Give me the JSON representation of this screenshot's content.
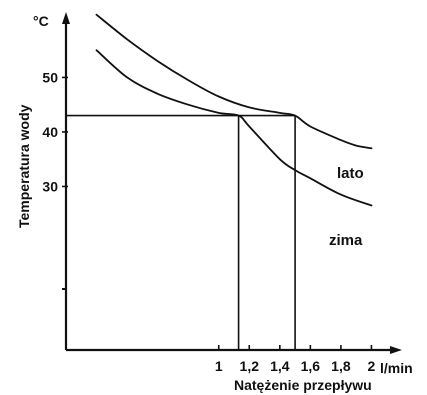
{
  "chart_data": {
    "type": "line",
    "title": "",
    "xlabel": "Natężenie przepływu",
    "ylabel": "Temperatura wody",
    "x_unit": "l/min",
    "y_unit": "°C",
    "xlim": [
      0.0,
      2.2
    ],
    "ylim": [
      0,
      62
    ],
    "x_ticks": [
      1,
      1.2,
      1.4,
      1.6,
      1.8,
      2
    ],
    "x_tick_labels": [
      "1",
      "1,2",
      "1,4",
      "1,6",
      "1,8",
      "2"
    ],
    "y_ticks": [
      30,
      40,
      50
    ],
    "y_tick_labels": [
      "30",
      "40",
      "50"
    ],
    "grid": false,
    "legend": "none",
    "series": [
      {
        "name": "lato",
        "x": [
          0.2,
          0.4,
          0.6,
          0.8,
          1.0,
          1.2,
          1.4,
          1.5,
          1.6,
          1.8,
          1.9,
          2.0
        ],
        "y": [
          61.5,
          57.0,
          53.0,
          49.5,
          46.5,
          44.5,
          43.5,
          43.0,
          41.0,
          38.5,
          37.5,
          37.0
        ]
      },
      {
        "name": "zima",
        "x": [
          0.2,
          0.4,
          0.6,
          0.8,
          1.0,
          1.13,
          1.2,
          1.4,
          1.5,
          1.6,
          1.8,
          2.0
        ],
        "y": [
          55.0,
          50.0,
          47.0,
          45.0,
          43.5,
          43.0,
          41.0,
          35.0,
          33.0,
          31.5,
          28.5,
          26.5
        ]
      }
    ],
    "reference_lines": [
      {
        "kind": "horizontal",
        "y": 43,
        "x_from": 0,
        "x_to": 1.5
      },
      {
        "kind": "vertical",
        "x": 1.13,
        "y_from": 0,
        "y_to": 43
      },
      {
        "kind": "vertical",
        "x": 1.5,
        "y_from": 0,
        "y_to": 43
      }
    ]
  }
}
